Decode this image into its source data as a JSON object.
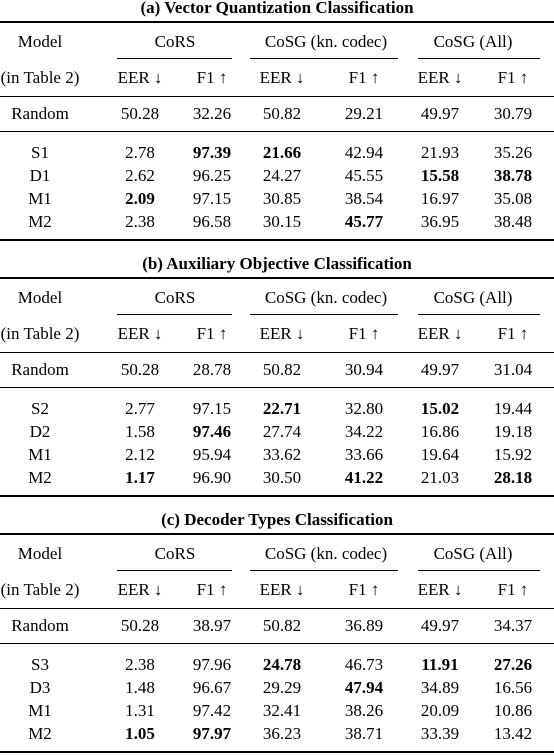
{
  "tables": [
    {
      "title": "(a) Vector Quantization Classification",
      "header": {
        "model": "Model",
        "model_sub": "(in Table 2)",
        "groups": [
          "CoRS",
          "CoSG (kn. codec)",
          "CoSG (All)"
        ],
        "metrics": [
          "EER ↓",
          "F1 ↑",
          "EER ↓",
          "F1 ↑",
          "EER ↓",
          "F1 ↑"
        ]
      },
      "rows": [
        [
          "Random",
          "50.28",
          "32.26",
          "50.82",
          "29.21",
          "49.97",
          "30.79"
        ],
        [
          "S1",
          "2.78",
          "97.39",
          "21.66",
          "42.94",
          "21.93",
          "35.26"
        ],
        [
          "D1",
          "2.62",
          "96.25",
          "24.27",
          "45.55",
          "15.58",
          "38.78"
        ],
        [
          "M1",
          "2.09",
          "97.15",
          "30.85",
          "38.54",
          "16.97",
          "35.08"
        ],
        [
          "M2",
          "2.38",
          "96.58",
          "30.15",
          "45.77",
          "36.95",
          "38.48"
        ]
      ],
      "bold": [
        [
          1,
          2
        ],
        [
          1,
          3
        ],
        [
          2,
          5
        ],
        [
          2,
          6
        ],
        [
          3,
          1
        ],
        [
          4,
          4
        ]
      ]
    },
    {
      "title": "(b) Auxiliary Objective Classification",
      "header": {
        "model": "Model",
        "model_sub": "(in Table 2)",
        "groups": [
          "CoRS",
          "CoSG (kn. codec)",
          "CoSG (All)"
        ],
        "metrics": [
          "EER ↓",
          "F1 ↑",
          "EER ↓",
          "F1 ↑",
          "EER ↓",
          "F1 ↑"
        ]
      },
      "rows": [
        [
          "Random",
          "50.28",
          "28.78",
          "50.82",
          "30.94",
          "49.97",
          "31.04"
        ],
        [
          "S2",
          "2.77",
          "97.15",
          "22.71",
          "32.80",
          "15.02",
          "19.44"
        ],
        [
          "D2",
          "1.58",
          "97.46",
          "27.74",
          "34.22",
          "16.86",
          "19.18"
        ],
        [
          "M1",
          "2.12",
          "95.94",
          "33.62",
          "33.66",
          "19.64",
          "15.92"
        ],
        [
          "M2",
          "1.17",
          "96.90",
          "30.50",
          "41.22",
          "21.03",
          "28.18"
        ]
      ],
      "bold": [
        [
          1,
          3
        ],
        [
          1,
          5
        ],
        [
          2,
          2
        ],
        [
          4,
          1
        ],
        [
          4,
          4
        ],
        [
          4,
          6
        ]
      ]
    },
    {
      "title": "(c) Decoder Types Classification",
      "header": {
        "model": "Model",
        "model_sub": "(in Table 2)",
        "groups": [
          "CoRS",
          "CoSG (kn. codec)",
          "CoSG (All)"
        ],
        "metrics": [
          "EER ↓",
          "F1 ↑",
          "EER ↓",
          "F1 ↑",
          "EER ↓",
          "F1 ↑"
        ]
      },
      "rows": [
        [
          "Random",
          "50.28",
          "38.97",
          "50.82",
          "36.89",
          "49.97",
          "34.37"
        ],
        [
          "S3",
          "2.38",
          "97.96",
          "24.78",
          "46.73",
          "11.91",
          "27.26"
        ],
        [
          "D3",
          "1.48",
          "96.67",
          "29.29",
          "47.94",
          "34.89",
          "16.56"
        ],
        [
          "M1",
          "1.31",
          "97.42",
          "32.41",
          "38.26",
          "20.09",
          "10.86"
        ],
        [
          "M2",
          "1.05",
          "97.97",
          "36.23",
          "38.71",
          "33.39",
          "13.42"
        ]
      ],
      "bold": [
        [
          1,
          3
        ],
        [
          1,
          5
        ],
        [
          1,
          6
        ],
        [
          2,
          4
        ],
        [
          4,
          1
        ],
        [
          4,
          2
        ]
      ]
    }
  ]
}
